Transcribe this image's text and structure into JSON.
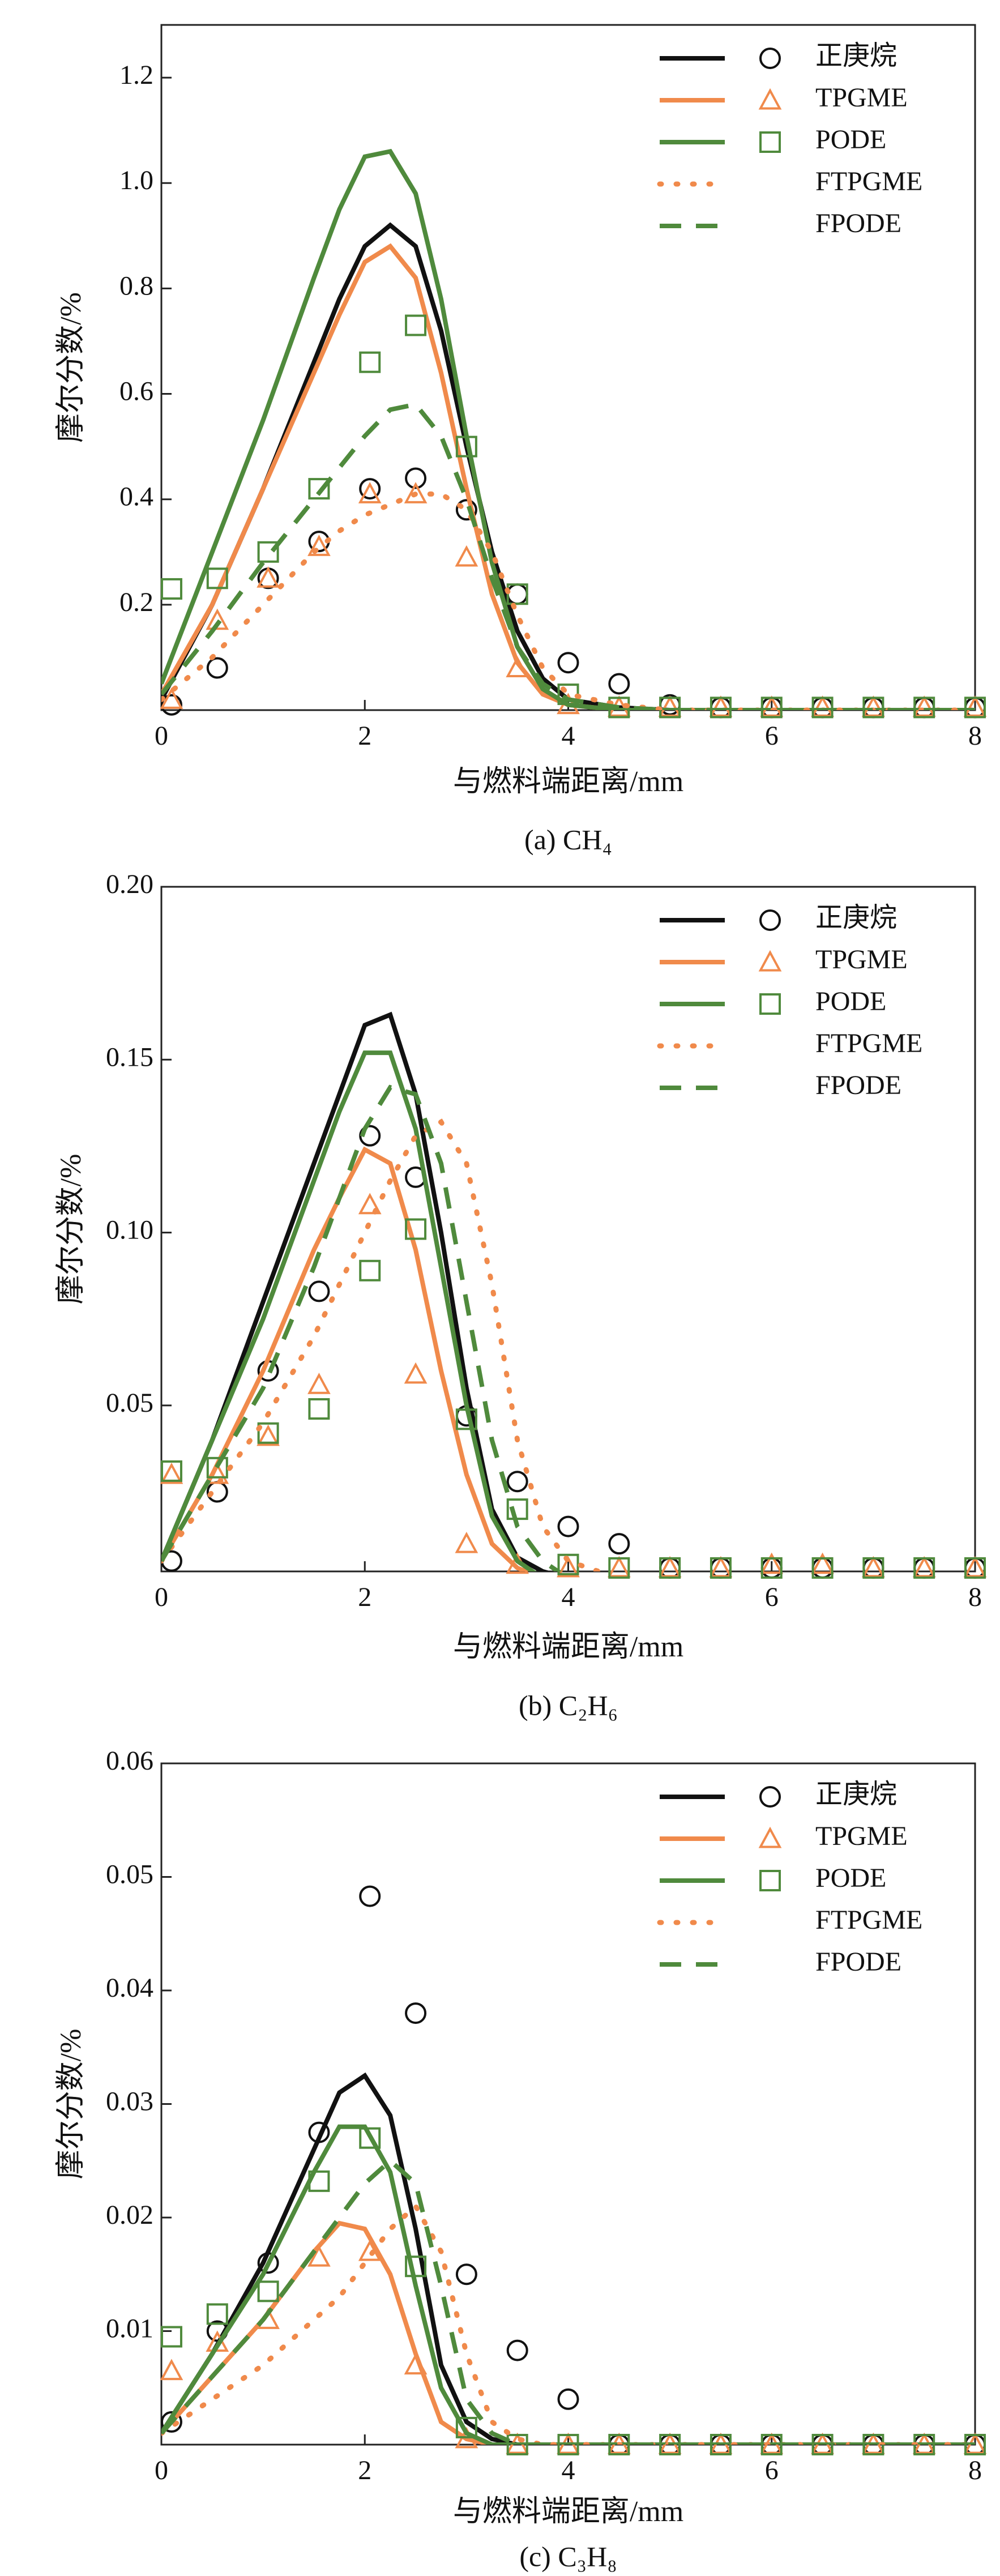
{
  "chart_data": [
    {
      "type": "line",
      "caption": "(a) CH₄",
      "xlabel": "与燃料端距离/mm",
      "ylabel": "摩尔分数/%",
      "xlim": [
        0,
        8
      ],
      "xticks": [
        0,
        2,
        4,
        6,
        8
      ],
      "ylim": [
        0,
        1.3
      ],
      "yticks": [
        0.2,
        0.4,
        0.6,
        0.8,
        {
          "value": 1.0,
          "label": "1.0"
        },
        1.2
      ],
      "legend": "upper right",
      "x": [
        0,
        0.5,
        1,
        1.5,
        1.75,
        2,
        2.25,
        2.5,
        2.75,
        3,
        3.25,
        3.5,
        3.75,
        4,
        4.5,
        5,
        6,
        7,
        8
      ],
      "points_x": [
        0.1,
        0.55,
        1.05,
        1.55,
        2.05,
        2.5,
        3.0,
        3.5,
        4.0,
        4.5,
        5.0,
        5.5,
        6.0,
        6.5,
        7.0,
        7.5,
        8.0
      ],
      "series": [
        {
          "name": "正庚烷",
          "color": "#111111",
          "style": "solid",
          "marker": "circle",
          "values": [
            0.02,
            0.2,
            0.42,
            0.66,
            0.78,
            0.88,
            0.92,
            0.88,
            0.72,
            0.5,
            0.3,
            0.15,
            0.06,
            0.02,
            0.005,
            0,
            0,
            0,
            0
          ],
          "points": [
            0.01,
            0.08,
            0.25,
            0.32,
            0.42,
            0.44,
            0.38,
            0.22,
            0.09,
            0.05,
            0.01,
            0.005,
            0.005,
            0.005,
            0.005,
            0.005,
            0.005
          ]
        },
        {
          "name": "TPGME",
          "color": "#f08a4b",
          "style": "solid",
          "marker": "triangle",
          "values": [
            0.03,
            0.2,
            0.42,
            0.64,
            0.75,
            0.85,
            0.88,
            0.82,
            0.64,
            0.42,
            0.22,
            0.09,
            0.03,
            0.01,
            0,
            0,
            0,
            0,
            0
          ],
          "points": [
            0.02,
            0.17,
            0.25,
            0.31,
            0.41,
            0.41,
            0.29,
            0.08,
            0.01,
            0.005,
            0.005,
            0.005,
            0.005,
            0.005,
            0.005,
            0.005,
            0.005
          ]
        },
        {
          "name": "PODE",
          "color": "#4f8a3c",
          "style": "solid",
          "marker": "square",
          "values": [
            0.05,
            0.3,
            0.55,
            0.82,
            0.95,
            1.05,
            1.06,
            0.98,
            0.78,
            0.52,
            0.28,
            0.12,
            0.04,
            0.01,
            0,
            0,
            0,
            0,
            0
          ],
          "points": [
            0.23,
            0.25,
            0.3,
            0.42,
            0.66,
            0.73,
            0.5,
            0.22,
            0.03,
            0.005,
            0.005,
            0.005,
            0.005,
            0.005,
            0.005,
            0.005,
            0.005
          ]
        },
        {
          "name": "FTPGME",
          "color": "#f08a4b",
          "style": "dotted",
          "values": [
            0.02,
            0.1,
            0.2,
            0.3,
            0.34,
            0.37,
            0.39,
            0.41,
            0.41,
            0.38,
            0.3,
            0.18,
            0.08,
            0.03,
            0.01,
            0,
            0,
            0,
            0
          ]
        },
        {
          "name": "FPODE",
          "color": "#4f8a3c",
          "style": "dashed",
          "values": [
            0.03,
            0.15,
            0.28,
            0.4,
            0.46,
            0.52,
            0.57,
            0.58,
            0.52,
            0.4,
            0.25,
            0.12,
            0.05,
            0.02,
            0.005,
            0,
            0,
            0,
            0
          ]
        }
      ]
    },
    {
      "type": "line",
      "caption": "(b) C₂H₆",
      "xlabel": "与燃料端距离/mm",
      "ylabel": "摩尔分数/%",
      "xlim": [
        0,
        8
      ],
      "xticks": [
        0,
        2,
        4,
        6,
        8
      ],
      "ylim": [
        0.002,
        0.2
      ],
      "yticks": [
        0.05,
        {
          "value": 0.1,
          "label": "0.10"
        },
        0.15,
        {
          "value": 0.2,
          "label": "0.20"
        }
      ],
      "legend": "upper right",
      "x": [
        0,
        0.5,
        1,
        1.5,
        1.75,
        2,
        2.25,
        2.5,
        2.75,
        3,
        3.25,
        3.5,
        3.75,
        4,
        4.5,
        5,
        6,
        7,
        8
      ],
      "points_x": [
        0.1,
        0.55,
        1.05,
        1.55,
        2.05,
        2.5,
        3.0,
        3.5,
        4.0,
        4.5,
        5.0,
        5.5,
        6.0,
        6.5,
        7.0,
        7.5,
        8.0
      ],
      "series": [
        {
          "name": "正庚烷",
          "color": "#111111",
          "style": "solid",
          "marker": "circle",
          "values": [
            0.005,
            0.04,
            0.08,
            0.12,
            0.14,
            0.16,
            0.163,
            0.14,
            0.1,
            0.055,
            0.02,
            0.006,
            0.002,
            0,
            0,
            0,
            0,
            0,
            0
          ],
          "points": [
            0.005,
            0.025,
            0.06,
            0.083,
            0.128,
            0.116,
            0.047,
            0.028,
            0.015,
            0.01,
            0.003,
            0.003,
            0.003,
            0.003,
            0.003,
            0.003,
            0.003
          ]
        },
        {
          "name": "TPGME",
          "color": "#f08a4b",
          "style": "solid",
          "marker": "triangle",
          "values": [
            0.005,
            0.03,
            0.06,
            0.095,
            0.11,
            0.124,
            0.12,
            0.095,
            0.06,
            0.03,
            0.01,
            0.003,
            0,
            0,
            0,
            0,
            0,
            0,
            0
          ],
          "points": [
            0.03,
            0.03,
            0.041,
            0.056,
            0.108,
            0.059,
            0.01,
            0.004,
            0.003,
            0.003,
            0.003,
            0.003,
            0.004,
            0.004,
            0.003,
            0.003,
            0.003
          ]
        },
        {
          "name": "PODE",
          "color": "#4f8a3c",
          "style": "solid",
          "marker": "square",
          "values": [
            0.005,
            0.04,
            0.075,
            0.115,
            0.135,
            0.152,
            0.152,
            0.13,
            0.09,
            0.05,
            0.018,
            0.005,
            0,
            0,
            0,
            0,
            0,
            0,
            0
          ],
          "points": [
            0.031,
            0.032,
            0.042,
            0.049,
            0.089,
            0.101,
            0.046,
            0.02,
            0.004,
            0.003,
            0.003,
            0.003,
            0.003,
            0.003,
            0.003,
            0.003,
            0.003
          ]
        },
        {
          "name": "FTPGME",
          "color": "#f08a4b",
          "style": "dotted",
          "values": [
            0.005,
            0.025,
            0.045,
            0.07,
            0.085,
            0.1,
            0.115,
            0.128,
            0.132,
            0.12,
            0.085,
            0.04,
            0.015,
            0.005,
            0,
            0,
            0,
            0,
            0
          ]
        },
        {
          "name": "FPODE",
          "color": "#4f8a3c",
          "style": "dashed",
          "values": [
            0.005,
            0.03,
            0.055,
            0.09,
            0.11,
            0.13,
            0.142,
            0.14,
            0.12,
            0.08,
            0.04,
            0.015,
            0.005,
            0,
            0,
            0,
            0,
            0,
            0
          ]
        }
      ]
    },
    {
      "type": "line",
      "caption": "(c) C₃H₈",
      "xlabel": "与燃料端距离/mm",
      "ylabel": "摩尔分数/%",
      "xlim": [
        0,
        8
      ],
      "xticks": [
        0,
        2,
        4,
        6,
        8
      ],
      "ylim": [
        0,
        0.06
      ],
      "yticks": [
        0.01,
        0.02,
        0.03,
        0.04,
        0.05,
        0.06
      ],
      "legend": "upper right",
      "x": [
        0,
        0.5,
        1,
        1.5,
        1.75,
        2,
        2.25,
        2.5,
        2.75,
        3,
        3.25,
        3.5,
        3.75,
        4,
        4.5,
        5,
        6,
        7,
        8
      ],
      "points_x": [
        0.1,
        0.55,
        1.05,
        1.55,
        2.05,
        2.5,
        3.0,
        3.5,
        4.0,
        4.5,
        5.0,
        5.5,
        6.0,
        6.5,
        7.0,
        7.5,
        8.0
      ],
      "series": [
        {
          "name": "正庚烷",
          "color": "#111111",
          "style": "solid",
          "marker": "circle",
          "values": [
            0.001,
            0.008,
            0.016,
            0.026,
            0.031,
            0.0325,
            0.029,
            0.019,
            0.007,
            0.002,
            0.0005,
            0,
            0,
            0,
            0,
            0,
            0,
            0,
            0
          ],
          "points": [
            0.002,
            0.01,
            0.016,
            0.0275,
            0.0483,
            0.038,
            0.015,
            0.0083,
            0.004,
            0,
            0,
            0,
            0,
            0,
            0,
            0,
            0
          ]
        },
        {
          "name": "TPGME",
          "color": "#f08a4b",
          "style": "solid",
          "marker": "triangle",
          "values": [
            0.001,
            0.006,
            0.011,
            0.017,
            0.0195,
            0.019,
            0.015,
            0.008,
            0.002,
            0.0005,
            0,
            0,
            0,
            0,
            0,
            0,
            0,
            0,
            0
          ],
          "points": [
            0.0065,
            0.009,
            0.011,
            0.0165,
            0.017,
            0.007,
            0.0005,
            0,
            0,
            0,
            0,
            0,
            0,
            0,
            0,
            0,
            0
          ]
        },
        {
          "name": "PODE",
          "color": "#4f8a3c",
          "style": "solid",
          "marker": "square",
          "values": [
            0.001,
            0.008,
            0.015,
            0.024,
            0.028,
            0.028,
            0.024,
            0.014,
            0.005,
            0.001,
            0,
            0,
            0,
            0,
            0,
            0,
            0,
            0,
            0
          ],
          "points": [
            0.0095,
            0.0115,
            0.0135,
            0.0232,
            0.027,
            0.0157,
            0.0015,
            0,
            0,
            0,
            0,
            0,
            0,
            0,
            0,
            0,
            0
          ]
        },
        {
          "name": "FTPGME",
          "color": "#f08a4b",
          "style": "dotted",
          "values": [
            0.001,
            0.004,
            0.007,
            0.011,
            0.013,
            0.016,
            0.019,
            0.021,
            0.017,
            0.008,
            0.002,
            0.0005,
            0,
            0,
            0,
            0,
            0,
            0,
            0
          ]
        },
        {
          "name": "FPODE",
          "color": "#4f8a3c",
          "style": "dashed",
          "values": [
            0.001,
            0.006,
            0.011,
            0.017,
            0.02,
            0.023,
            0.025,
            0.023,
            0.014,
            0.004,
            0.001,
            0,
            0,
            0,
            0,
            0,
            0,
            0,
            0
          ]
        }
      ]
    }
  ]
}
